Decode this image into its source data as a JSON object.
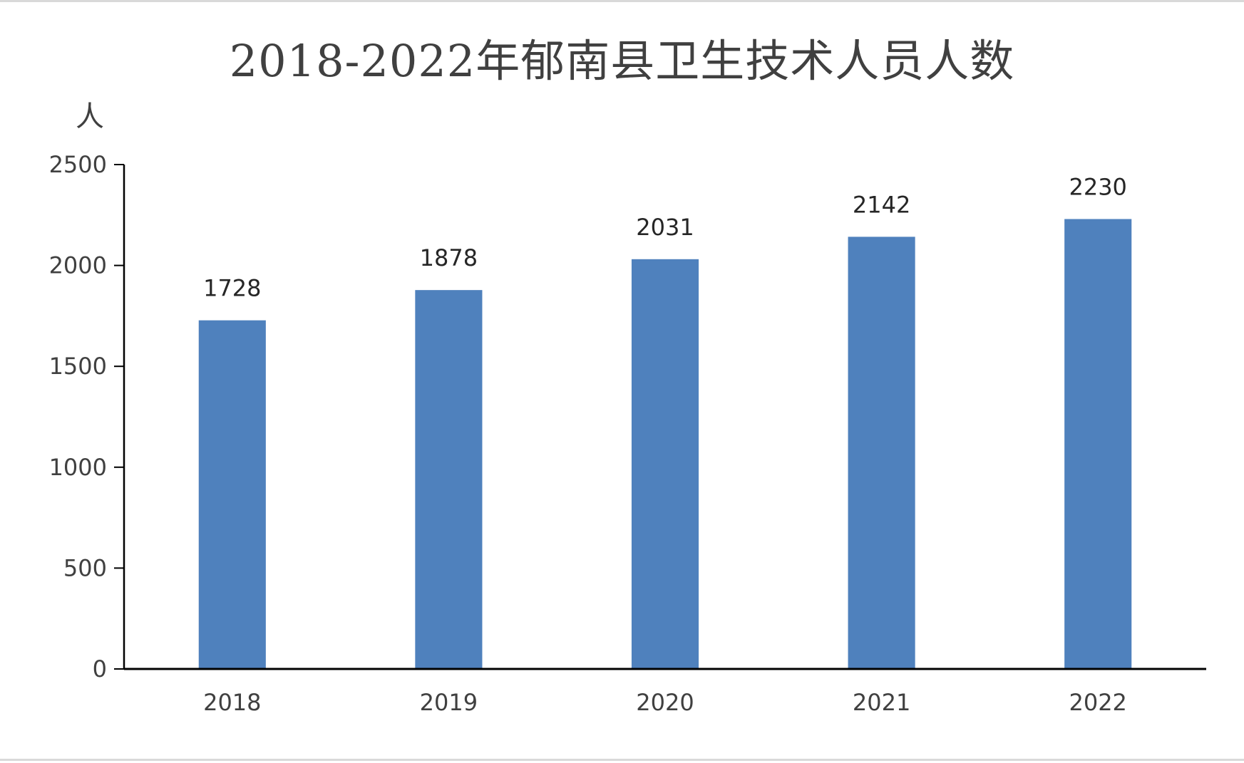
{
  "chart_data": {
    "type": "bar",
    "title": "2018-2022年郁南县卫生技术人员人数",
    "ylabel": "人",
    "xlabel": "",
    "categories": [
      "2018",
      "2019",
      "2020",
      "2021",
      "2022"
    ],
    "values": [
      1728,
      1878,
      2031,
      2142,
      2230
    ],
    "ylim": [
      0,
      2500
    ],
    "yticks": [
      0,
      500,
      1000,
      1500,
      2000,
      2500
    ],
    "data_labels": true,
    "grid": false,
    "legend": "none",
    "bar_color": "#4f81bd",
    "axis_color": "#000000"
  }
}
